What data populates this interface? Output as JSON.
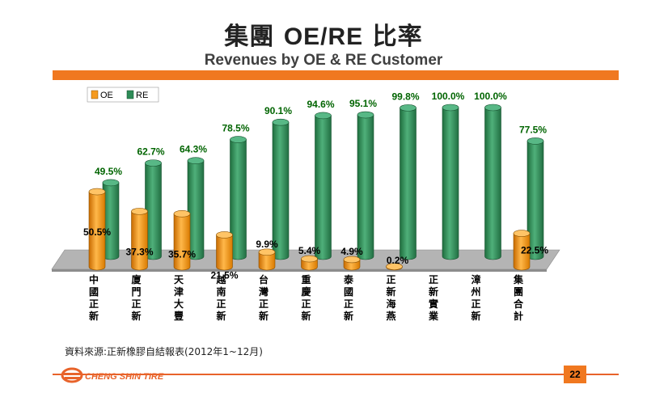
{
  "header": {
    "title_prefix": "集團 ",
    "title_latin": "OE/RE",
    "title_suffix": " 比率",
    "subtitle": "Revenues by OE & RE Customer"
  },
  "source_note": "資料來源:正新橡膠自結報表(2012年1~12月)",
  "page_number": "22",
  "logo_text": "CHENG SHIN TIRE",
  "colors": {
    "accent": "#f07820",
    "oe": "#f59a1e",
    "re": "#2e8b57",
    "value_label": "#006400"
  },
  "chart_data": {
    "type": "bar",
    "categories": [
      "中國正新",
      "廈門正新",
      "天津大豐",
      "越南正新",
      "台灣正新",
      "重慶正新",
      "泰國正新",
      "正新海燕",
      "正新實業",
      "漳州正新",
      "集團合計"
    ],
    "series": [
      {
        "name": "OE",
        "values": [
          50.5,
          37.3,
          35.7,
          21.5,
          9.9,
          5.4,
          4.9,
          0.2,
          0,
          0,
          22.5
        ],
        "labels": [
          "50.5%",
          "37.3%",
          "35.7%",
          "21.5%",
          "9.9%",
          "5.4%",
          "4.9%",
          "0.2%",
          "",
          "",
          "22.5%"
        ]
      },
      {
        "name": "RE",
        "values": [
          49.5,
          62.7,
          64.3,
          78.5,
          90.1,
          94.6,
          95.1,
          99.8,
          100.0,
          100.0,
          77.5
        ],
        "labels": [
          "49.5%",
          "62.7%",
          "64.3%",
          "78.5%",
          "90.1%",
          "94.6%",
          "95.1%",
          "99.8%",
          "100.0%",
          "100.0%",
          "77.5%"
        ]
      }
    ],
    "ylim": [
      0,
      100
    ],
    "legend": "top-left",
    "grid": false
  }
}
